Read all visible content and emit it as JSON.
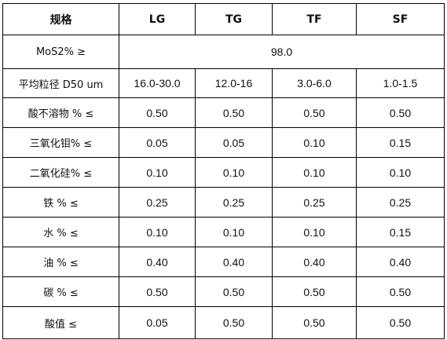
{
  "header": {
    "spec_label": "规格",
    "grades": [
      "LG",
      "TG",
      "TF",
      "SF"
    ]
  },
  "rows": {
    "mos2": {
      "label": "MoS2% ≥",
      "value": "98.0"
    },
    "d50": {
      "label": "平均粒径 D50 um",
      "values": [
        "16.0-30.0",
        "12.0-16",
        "3.0-6.0",
        "1.0-1.5"
      ]
    },
    "acid_insoluble": {
      "label": "酸不溶物 %  ≤",
      "values": [
        "0.50",
        "0.50",
        "0.50",
        "0.50"
      ]
    },
    "moo3": {
      "label": "三氧化钼% ≤",
      "values": [
        "0.05",
        "0.05",
        "0.10",
        "0.15"
      ]
    },
    "sio2": {
      "label": "二氧化硅%  ≤",
      "values": [
        "0.10",
        "0.10",
        "0.10",
        "0.10"
      ]
    },
    "iron": {
      "label": "铁  % ≤",
      "values": [
        "0.25",
        "0.25",
        "0.25",
        "0.25"
      ]
    },
    "water": {
      "label": "水 % ≤",
      "values": [
        "0.10",
        "0.10",
        "0.10",
        "0.15"
      ]
    },
    "oil": {
      "label": "油  %  ≤",
      "values": [
        "0.40",
        "0.40",
        "0.40",
        "0.40"
      ]
    },
    "carbon": {
      "label": "碳 % ≤",
      "values": [
        "0.50",
        "0.50",
        "0.50",
        "0.50"
      ]
    },
    "acid_value": {
      "label": "酸值  ≤",
      "values": [
        "0.05",
        "0.50",
        "0.50",
        "0.50"
      ]
    }
  }
}
